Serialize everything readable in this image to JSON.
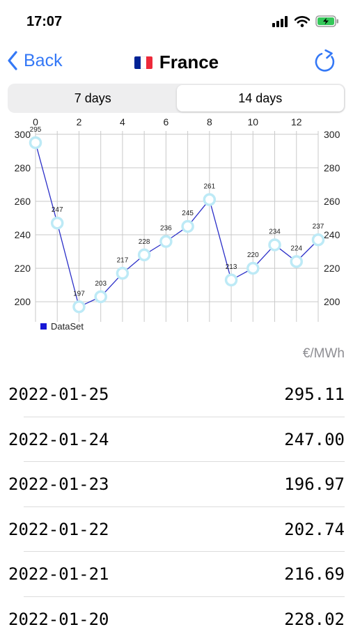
{
  "status_bar": {
    "time": "17:07"
  },
  "nav": {
    "back_label": "Back",
    "title": "France",
    "flag_colors": [
      "#002395",
      "#ffffff",
      "#ED2939"
    ],
    "accent": "#3478F6"
  },
  "segments": [
    {
      "label": "7 days",
      "selected": false
    },
    {
      "label": "14 days",
      "selected": true
    }
  ],
  "chart_data": {
    "type": "line",
    "x": [
      0,
      1,
      2,
      3,
      4,
      5,
      6,
      7,
      8,
      9,
      10,
      11,
      12,
      13
    ],
    "series": [
      {
        "name": "DataSet",
        "values": [
          295,
          247,
          197,
          203,
          217,
          228,
          236,
          245,
          261,
          213,
          220,
          234,
          224,
          237
        ],
        "color": "#2b2fc8"
      }
    ],
    "x_ticks": [
      "0",
      "2",
      "4",
      "6",
      "8",
      "10",
      "12"
    ],
    "y_ticks": [
      "200",
      "220",
      "240",
      "260",
      "280",
      "300"
    ],
    "xlim": [
      0,
      13
    ],
    "ylim": [
      188,
      302
    ],
    "grid": true,
    "legend_position": "bottom-left",
    "marker_color": "#bdeaf6"
  },
  "unit": "€/MWh",
  "prices": [
    {
      "date": "2022-01-25",
      "value": "295.11"
    },
    {
      "date": "2022-01-24",
      "value": "247.00"
    },
    {
      "date": "2022-01-23",
      "value": "196.97"
    },
    {
      "date": "2022-01-22",
      "value": "202.74"
    },
    {
      "date": "2022-01-21",
      "value": "216.69"
    },
    {
      "date": "2022-01-20",
      "value": "228.02"
    }
  ]
}
